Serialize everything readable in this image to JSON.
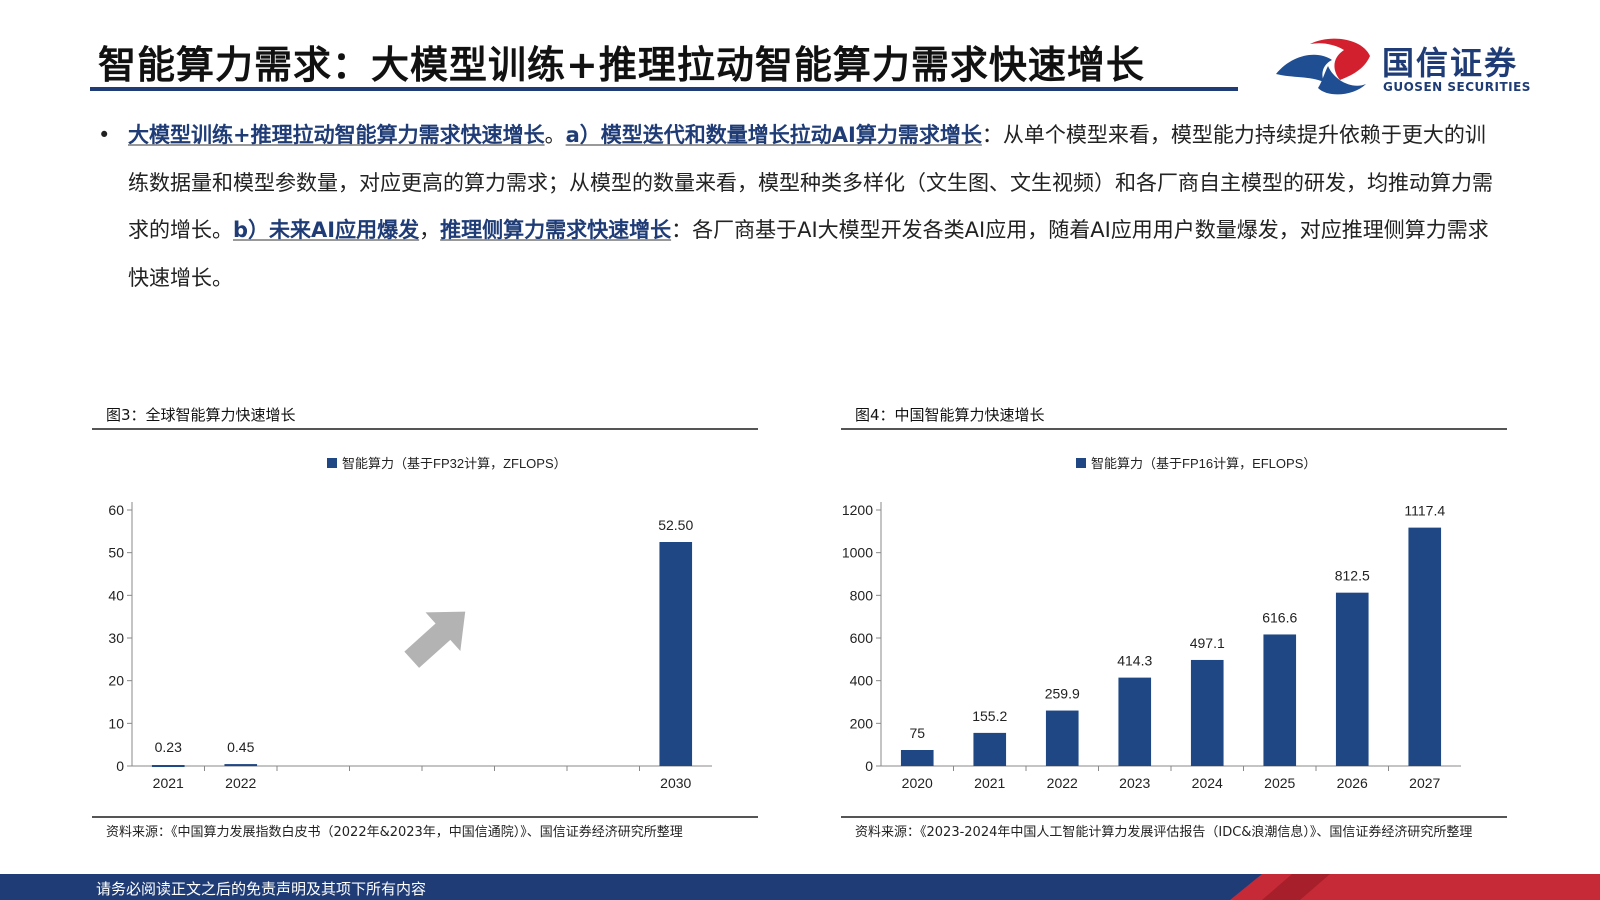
{
  "header": {
    "title": "智能算力需求：大模型训练+推理拉动智能算力需求快速增长",
    "logo_cn": "国信证券",
    "logo_en": "GUOSEN SECURITIES"
  },
  "body": {
    "bullet": "•",
    "lead": "大模型训练+推理拉动智能算力需求快速增长",
    "sep1": "。",
    "a_label": "a）模型迭代和数量增长拉动AI算力需求增长",
    "a_text": "：从单个模型来看，模型能力持续提升依赖于更大的训练数据量和模型参数量，对应更高的算力需求；从模型的数量来看，模型种类多样化（文生图、文生视频）和各厂商自主模型的研发，均推动算力需求的增长。",
    "b_label1": "b）未来AI应用爆发",
    "b_comma": "，",
    "b_label2": "推理侧算力需求快速增长",
    "b_text": "：各厂商基于AI大模型开发各类AI应用，随着AI应用用户数量爆发，对应推理侧算力需求快速增长。"
  },
  "figures": [
    {
      "title": "图3：全球智能算力快速增长",
      "source": "资料来源：《中国算力发展指数白皮书（2022年&2023年，中国信通院）》、国信证券经济研究所整理"
    },
    {
      "title": "图4：中国智能算力快速增长",
      "source": "资料来源：《2023-2024年中国人工智能计算力发展评估报告（IDC&浪潮信息）》、国信证券经济研究所整理"
    }
  ],
  "chart_data": [
    {
      "type": "bar",
      "categories": [
        "2021",
        "2022",
        "",
        "",
        "",
        "",
        "",
        "2030"
      ],
      "series": [
        {
          "name": "智能算力（基于FP32计算，ZFLOPS）",
          "values": [
            0.23,
            0.45,
            null,
            null,
            null,
            null,
            null,
            52.5
          ]
        }
      ],
      "data_labels": [
        "0.23",
        "0.45",
        "",
        "",
        "",
        "",
        "",
        "52.50"
      ],
      "yticks": [
        0,
        10,
        20,
        30,
        40,
        50,
        60
      ],
      "ylim": [
        0,
        60
      ],
      "title": "",
      "xlabel": "",
      "ylabel": "",
      "legend": "top-center",
      "grid": false,
      "annotation": "upward-arrow",
      "bar_color": "#1f4784"
    },
    {
      "type": "bar",
      "categories": [
        "2020",
        "2021",
        "2022",
        "2023",
        "2024",
        "2025",
        "2026",
        "2027"
      ],
      "series": [
        {
          "name": "智能算力（基于FP16计算，EFLOPS）",
          "values": [
            75,
            155.2,
            259.9,
            414.3,
            497.1,
            616.6,
            812.5,
            1117.4
          ]
        }
      ],
      "data_labels": [
        "75",
        "155.2",
        "259.9",
        "414.3",
        "497.1",
        "616.6",
        "812.5",
        "1117.4"
      ],
      "yticks": [
        0,
        200,
        400,
        600,
        800,
        1000,
        1200
      ],
      "ylim": [
        0,
        1200
      ],
      "title": "",
      "xlabel": "",
      "ylabel": "",
      "legend": "top-center",
      "grid": false,
      "bar_color": "#1f4784"
    }
  ],
  "footer": {
    "disclaimer": "请务必阅读正文之后的免责声明及其项下所有内容"
  }
}
